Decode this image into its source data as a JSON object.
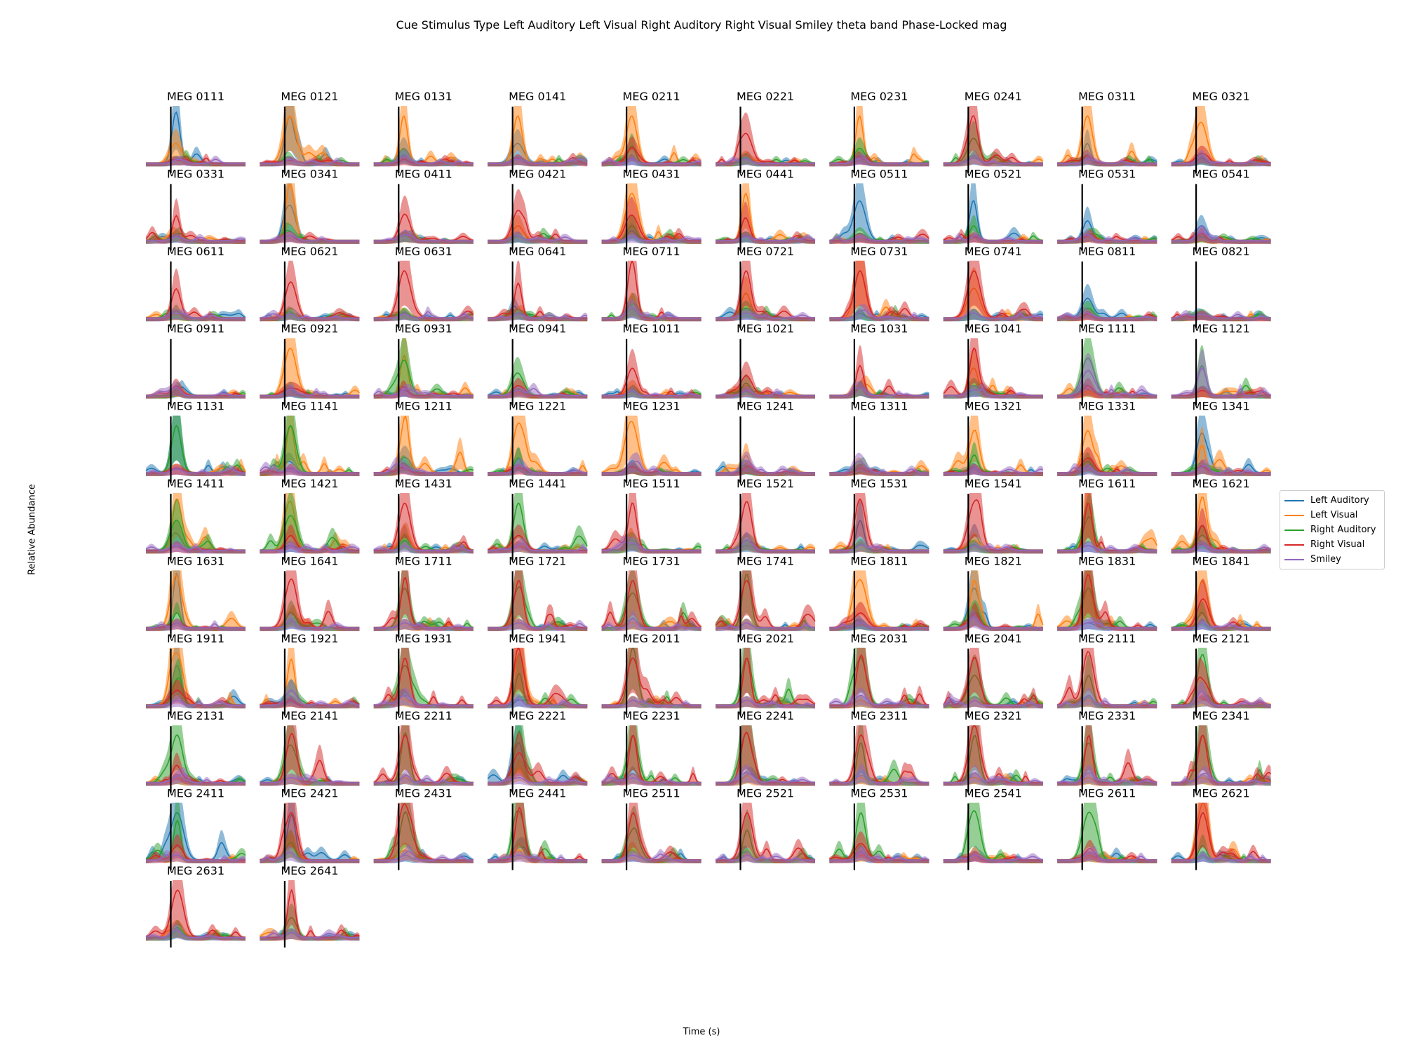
{
  "figure": {
    "title": "Cue Stimulus Type Left Auditory Left Visual Right Auditory Right Visual Smiley theta band Phase-Locked mag",
    "xlabel": "Time (s)",
    "ylabel": "Relative Abundance"
  },
  "legend": [
    {
      "name": "Left Auditory",
      "color": "#1f77b4"
    },
    {
      "name": "Left Visual",
      "color": "#ff7f0e"
    },
    {
      "name": "Right Auditory",
      "color": "#2ca02c"
    },
    {
      "name": "Right Visual",
      "color": "#d62728"
    },
    {
      "name": "Smiley",
      "color": "#9467bd"
    }
  ],
  "chart_data": {
    "type": "line",
    "layout": "small multiples",
    "legend_position": "right",
    "axes_visible": false,
    "stimulus_marker": "vertical black line",
    "series_names": [
      "Left Auditory",
      "Left Visual",
      "Right Auditory",
      "Right Visual",
      "Smiley"
    ],
    "series_colors": [
      "#1f77b4",
      "#ff7f0e",
      "#2ca02c",
      "#d62728",
      "#9467bd"
    ],
    "panels": [
      {
        "name": "MEG 0111",
        "peaks": [
          95,
          40,
          8,
          6,
          6
        ]
      },
      {
        "name": "MEG 0121",
        "peaks": [
          95,
          95,
          6,
          6,
          8
        ]
      },
      {
        "name": "MEG 0131",
        "peaks": [
          30,
          95,
          10,
          8,
          15
        ]
      },
      {
        "name": "MEG 0141",
        "peaks": [
          40,
          95,
          8,
          10,
          8
        ]
      },
      {
        "name": "MEG 0211",
        "peaks": [
          10,
          95,
          35,
          30,
          8
        ]
      },
      {
        "name": "MEG 0221",
        "peaks": [
          8,
          10,
          10,
          60,
          8
        ]
      },
      {
        "name": "MEG 0231",
        "peaks": [
          15,
          95,
          30,
          10,
          8
        ]
      },
      {
        "name": "MEG 0241",
        "peaks": [
          10,
          10,
          50,
          90,
          8
        ]
      },
      {
        "name": "MEG 0311",
        "peaks": [
          40,
          95,
          10,
          10,
          8
        ]
      },
      {
        "name": "MEG 0321",
        "peaks": [
          10,
          80,
          10,
          20,
          15
        ]
      },
      {
        "name": "MEG 0331",
        "peaks": [
          8,
          8,
          10,
          50,
          8
        ]
      },
      {
        "name": "MEG 0341",
        "peaks": [
          60,
          95,
          15,
          10,
          10
        ]
      },
      {
        "name": "MEG 0411",
        "peaks": [
          8,
          10,
          10,
          50,
          8
        ]
      },
      {
        "name": "MEG 0421",
        "peaks": [
          8,
          30,
          10,
          60,
          8
        ]
      },
      {
        "name": "MEG 0431",
        "peaks": [
          20,
          95,
          30,
          50,
          8
        ]
      },
      {
        "name": "MEG 0441",
        "peaks": [
          10,
          95,
          10,
          40,
          8
        ]
      },
      {
        "name": "MEG 0511",
        "peaks": [
          80,
          8,
          15,
          8,
          8
        ]
      },
      {
        "name": "MEG 0521",
        "peaks": [
          70,
          8,
          30,
          8,
          8
        ]
      },
      {
        "name": "MEG 0531",
        "peaks": [
          40,
          8,
          10,
          8,
          8
        ]
      },
      {
        "name": "MEG 0541",
        "peaks": [
          30,
          10,
          8,
          15,
          8
        ]
      },
      {
        "name": "MEG 0611",
        "peaks": [
          8,
          8,
          10,
          50,
          8
        ]
      },
      {
        "name": "MEG 0621",
        "peaks": [
          8,
          10,
          10,
          70,
          8
        ]
      },
      {
        "name": "MEG 0631",
        "peaks": [
          10,
          10,
          10,
          95,
          8
        ]
      },
      {
        "name": "MEG 0641",
        "peaks": [
          8,
          8,
          10,
          70,
          8
        ]
      },
      {
        "name": "MEG 0711",
        "peaks": [
          10,
          30,
          25,
          95,
          20
        ]
      },
      {
        "name": "MEG 0721",
        "peaks": [
          10,
          50,
          20,
          95,
          10
        ]
      },
      {
        "name": "MEG 0731",
        "peaks": [
          10,
          95,
          15,
          95,
          10
        ]
      },
      {
        "name": "MEG 0741",
        "peaks": [
          10,
          60,
          10,
          95,
          10
        ]
      },
      {
        "name": "MEG 0811",
        "peaks": [
          40,
          10,
          20,
          8,
          8
        ]
      },
      {
        "name": "MEG 0821",
        "peaks": [
          8,
          8,
          10,
          8,
          8
        ]
      },
      {
        "name": "MEG 0911",
        "peaks": [
          8,
          10,
          10,
          15,
          15
        ]
      },
      {
        "name": "MEG 0921",
        "peaks": [
          10,
          95,
          15,
          15,
          10
        ]
      },
      {
        "name": "MEG 0931",
        "peaks": [
          10,
          80,
          70,
          10,
          10
        ]
      },
      {
        "name": "MEG 0941",
        "peaks": [
          8,
          8,
          40,
          15,
          10
        ]
      },
      {
        "name": "MEG 1011",
        "peaks": [
          8,
          10,
          10,
          55,
          10
        ]
      },
      {
        "name": "MEG 1021",
        "peaks": [
          8,
          10,
          25,
          40,
          10
        ]
      },
      {
        "name": "MEG 1031",
        "peaks": [
          10,
          10,
          10,
          55,
          15
        ]
      },
      {
        "name": "MEG 1041",
        "peaks": [
          10,
          55,
          20,
          95,
          10
        ]
      },
      {
        "name": "MEG 1111",
        "peaks": [
          10,
          10,
          75,
          20,
          50
        ]
      },
      {
        "name": "MEG 1121",
        "peaks": [
          10,
          10,
          60,
          10,
          55
        ]
      },
      {
        "name": "MEG 1131",
        "peaks": [
          95,
          10,
          95,
          10,
          8
        ]
      },
      {
        "name": "MEG 1141",
        "peaks": [
          20,
          95,
          95,
          10,
          8
        ]
      },
      {
        "name": "MEG 1211",
        "peaks": [
          30,
          95,
          15,
          10,
          10
        ]
      },
      {
        "name": "MEG 1221",
        "peaks": [
          30,
          95,
          30,
          10,
          10
        ]
      },
      {
        "name": "MEG 1231",
        "peaks": [
          15,
          95,
          15,
          10,
          20
        ]
      },
      {
        "name": "MEG 1241",
        "peaks": [
          10,
          35,
          10,
          10,
          25
        ]
      },
      {
        "name": "MEG 1311",
        "peaks": [
          10,
          15,
          15,
          10,
          20
        ]
      },
      {
        "name": "MEG 1321",
        "peaks": [
          10,
          80,
          30,
          10,
          10
        ]
      },
      {
        "name": "MEG 1331",
        "peaks": [
          10,
          70,
          20,
          30,
          10
        ]
      },
      {
        "name": "MEG 1341",
        "peaks": [
          80,
          55,
          10,
          15,
          10
        ]
      },
      {
        "name": "MEG 1411",
        "peaks": [
          30,
          95,
          60,
          10,
          10
        ]
      },
      {
        "name": "MEG 1421",
        "peaks": [
          10,
          95,
          70,
          30,
          10
        ]
      },
      {
        "name": "MEG 1431",
        "peaks": [
          30,
          30,
          20,
          95,
          10
        ]
      },
      {
        "name": "MEG 1441",
        "peaks": [
          10,
          10,
          95,
          30,
          10
        ]
      },
      {
        "name": "MEG 1511",
        "peaks": [
          10,
          20,
          20,
          95,
          15
        ]
      },
      {
        "name": "MEG 1521",
        "peaks": [
          10,
          20,
          20,
          95,
          10
        ]
      },
      {
        "name": "MEG 1531",
        "peaks": [
          60,
          10,
          10,
          95,
          10
        ]
      },
      {
        "name": "MEG 1541",
        "peaks": [
          30,
          20,
          10,
          95,
          10
        ]
      },
      {
        "name": "MEG 1611",
        "peaks": [
          10,
          95,
          60,
          95,
          10
        ]
      },
      {
        "name": "MEG 1621",
        "peaks": [
          10,
          95,
          30,
          50,
          10
        ]
      },
      {
        "name": "MEG 1631",
        "peaks": [
          95,
          95,
          30,
          10,
          10
        ]
      },
      {
        "name": "MEG 1641",
        "peaks": [
          10,
          20,
          30,
          95,
          10
        ]
      },
      {
        "name": "MEG 1711",
        "peaks": [
          10,
          10,
          80,
          95,
          10
        ]
      },
      {
        "name": "MEG 1721",
        "peaks": [
          10,
          10,
          80,
          95,
          10
        ]
      },
      {
        "name": "MEG 1731",
        "peaks": [
          10,
          10,
          70,
          95,
          20
        ]
      },
      {
        "name": "MEG 1741",
        "peaks": [
          10,
          10,
          95,
          95,
          10
        ]
      },
      {
        "name": "MEG 1811",
        "peaks": [
          10,
          95,
          10,
          30,
          10
        ]
      },
      {
        "name": "MEG 1821",
        "peaks": [
          80,
          95,
          30,
          20,
          10
        ]
      },
      {
        "name": "MEG 1831",
        "peaks": [
          10,
          80,
          80,
          95,
          10
        ]
      },
      {
        "name": "MEG 1841",
        "peaks": [
          10,
          95,
          30,
          50,
          10
        ]
      },
      {
        "name": "MEG 1911",
        "peaks": [
          80,
          95,
          50,
          30,
          10
        ]
      },
      {
        "name": "MEG 1921",
        "peaks": [
          10,
          80,
          30,
          10,
          30
        ]
      },
      {
        "name": "MEG 1931",
        "peaks": [
          10,
          10,
          80,
          95,
          20
        ]
      },
      {
        "name": "MEG 1941",
        "peaks": [
          10,
          95,
          60,
          95,
          10
        ]
      },
      {
        "name": "MEG 2011",
        "peaks": [
          10,
          10,
          95,
          95,
          10
        ]
      },
      {
        "name": "MEG 2021",
        "peaks": [
          10,
          10,
          95,
          95,
          10
        ]
      },
      {
        "name": "MEG 2031",
        "peaks": [
          10,
          10,
          95,
          95,
          20
        ]
      },
      {
        "name": "MEG 2041",
        "peaks": [
          10,
          10,
          60,
          95,
          10
        ]
      },
      {
        "name": "MEG 2111",
        "peaks": [
          10,
          10,
          60,
          95,
          20
        ]
      },
      {
        "name": "MEG 2121",
        "peaks": [
          10,
          10,
          95,
          50,
          20
        ]
      },
      {
        "name": "MEG 2131",
        "peaks": [
          10,
          10,
          95,
          30,
          10
        ]
      },
      {
        "name": "MEG 2141",
        "peaks": [
          10,
          10,
          70,
          95,
          10
        ]
      },
      {
        "name": "MEG 2211",
        "peaks": [
          10,
          10,
          95,
          95,
          10
        ]
      },
      {
        "name": "MEG 2221",
        "peaks": [
          80,
          20,
          95,
          60,
          10
        ]
      },
      {
        "name": "MEG 2231",
        "peaks": [
          10,
          10,
          95,
          95,
          10
        ]
      },
      {
        "name": "MEG 2241",
        "peaks": [
          10,
          10,
          95,
          95,
          20
        ]
      },
      {
        "name": "MEG 2311",
        "peaks": [
          10,
          10,
          80,
          95,
          20
        ]
      },
      {
        "name": "MEG 2321",
        "peaks": [
          10,
          10,
          95,
          95,
          20
        ]
      },
      {
        "name": "MEG 2331",
        "peaks": [
          10,
          10,
          80,
          95,
          20
        ]
      },
      {
        "name": "MEG 2341",
        "peaks": [
          10,
          10,
          95,
          95,
          10
        ]
      },
      {
        "name": "MEG 2411",
        "peaks": [
          95,
          10,
          80,
          30,
          10
        ]
      },
      {
        "name": "MEG 2421",
        "peaks": [
          80,
          30,
          30,
          95,
          10
        ]
      },
      {
        "name": "MEG 2431",
        "peaks": [
          10,
          20,
          95,
          95,
          10
        ]
      },
      {
        "name": "MEG 2441",
        "peaks": [
          20,
          20,
          95,
          95,
          10
        ]
      },
      {
        "name": "MEG 2511",
        "peaks": [
          10,
          20,
          60,
          95,
          10
        ]
      },
      {
        "name": "MEG 2521",
        "peaks": [
          10,
          10,
          60,
          95,
          10
        ]
      },
      {
        "name": "MEG 2531",
        "peaks": [
          10,
          10,
          95,
          30,
          10
        ]
      },
      {
        "name": "MEG 2541",
        "peaks": [
          10,
          10,
          95,
          10,
          10
        ]
      },
      {
        "name": "MEG 2611",
        "peaks": [
          10,
          10,
          95,
          20,
          10
        ]
      },
      {
        "name": "MEG 2621",
        "peaks": [
          10,
          95,
          30,
          95,
          10
        ]
      },
      {
        "name": "MEG 2631",
        "peaks": [
          10,
          20,
          20,
          95,
          10
        ]
      },
      {
        "name": "MEG 2641",
        "peaks": [
          10,
          10,
          40,
          95,
          10
        ]
      }
    ]
  }
}
